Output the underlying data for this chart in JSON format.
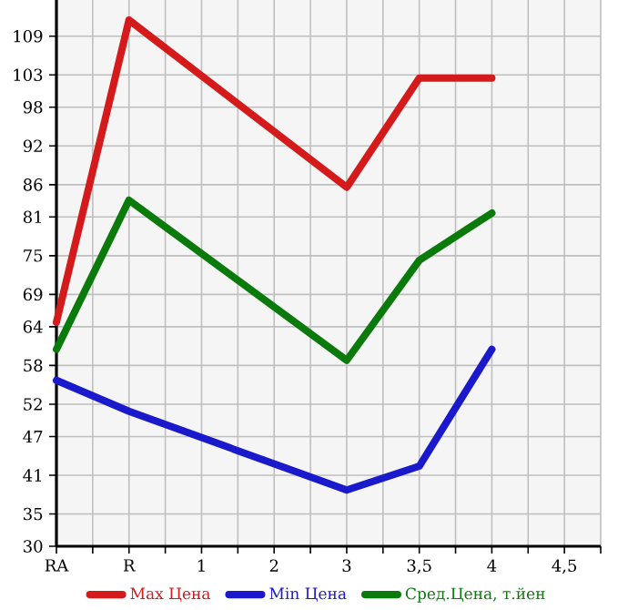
{
  "chart_data": {
    "type": "line",
    "categories": [
      "RA",
      "R",
      "1",
      "2",
      "3",
      "3,5",
      "4",
      "4,5"
    ],
    "series": [
      {
        "name": "Max Цена",
        "color": "#d41a1a",
        "values": [
          64.7,
          111.5,
          null,
          null,
          85.6,
          102.5,
          102.5,
          null
        ]
      },
      {
        "name": "Min Цена",
        "color": "#1a1acc",
        "values": [
          55.7,
          50.9,
          null,
          null,
          38.7,
          42.4,
          60.5,
          null
        ]
      },
      {
        "name": "Сред.Цена, т.йен",
        "color": "#0a7a0a",
        "values": [
          60.5,
          83.6,
          null,
          null,
          58.8,
          74.3,
          81.6,
          null
        ]
      }
    ],
    "ylim": [
      30,
      114.6
    ],
    "yticks": [
      30,
      35,
      41,
      47,
      52,
      58,
      64,
      69,
      75,
      81,
      86,
      92,
      98,
      103,
      109
    ],
    "grid": true,
    "legend": "bottom",
    "marker": "none",
    "line_style": "solid"
  }
}
